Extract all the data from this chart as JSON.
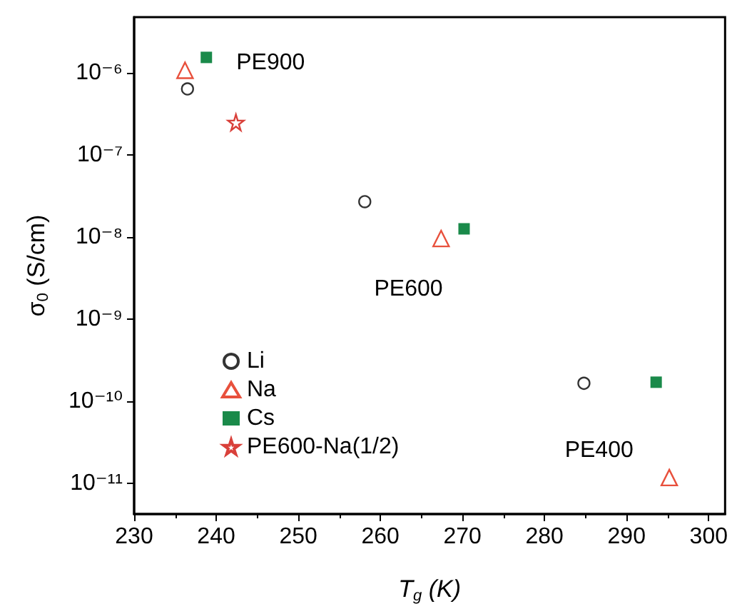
{
  "chart_data": {
    "type": "scatter",
    "xlabel": "T$_{g}$ (K)",
    "ylabel": "σ$_{0}$ (S/cm)",
    "log": "y",
    "xlim": [
      230,
      302
    ],
    "xticks": [
      230,
      240,
      250,
      260,
      270,
      280,
      290,
      300
    ],
    "ylim": [
      4.2e-12,
      4.8e-06
    ],
    "yticks": [
      {
        "value": 1e-11,
        "label": "10⁻¹¹"
      },
      {
        "value": 1e-10,
        "label": "10⁻¹⁰"
      },
      {
        "value": 1e-09,
        "label": "10⁻⁹"
      },
      {
        "value": 1e-08,
        "label": "10⁻⁸"
      },
      {
        "value": 1e-07,
        "label": "10⁻⁷"
      },
      {
        "value": 1e-06,
        "label": "10⁻⁶"
      }
    ],
    "grid": false,
    "legend": "left",
    "series": [
      {
        "name": "Li",
        "color": "#333333",
        "marker": "circle",
        "x": [
          236.5,
          258.1,
          284.8
        ],
        "values": [
          6.4e-07,
          2.7e-08,
          1.65e-10
        ]
      },
      {
        "name": "Na",
        "color": "#e8503c",
        "marker": "triangle",
        "x": [
          236.2,
          267.4,
          295.2
        ],
        "values": [
          1.08e-06,
          9.6e-09,
          1.17e-11
        ]
      },
      {
        "name": "Cs",
        "color": "#1a8a4a",
        "marker": "square",
        "x": [
          238.8,
          270.2,
          293.6
        ],
        "values": [
          1.55e-06,
          1.26e-08,
          1.7e-10
        ]
      },
      {
        "name": "PE600-Na(1/2)",
        "color": "#d9403a",
        "marker": "star",
        "x": [
          242.4
        ],
        "values": [
          2.5e-07
        ]
      }
    ],
    "annotations": [
      "PE900",
      "PE600",
      "PE400"
    ]
  }
}
